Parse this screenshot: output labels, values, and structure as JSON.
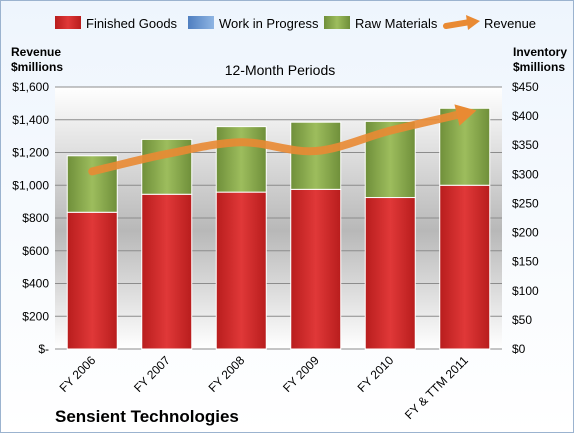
{
  "chart_data": {
    "type": "bar",
    "title": "12-Month Periods",
    "company": "Sensient Technologies",
    "categories": [
      "FY 2006",
      "FY 2007",
      "FY 2008",
      "FY 2009",
      "FY 2010",
      "FY & TTM 2011"
    ],
    "left_axis": {
      "title_line1": "Revenue",
      "title_line2": "$millions",
      "ylim": [
        0,
        1600
      ],
      "ticks": [
        0,
        200,
        400,
        600,
        800,
        1000,
        1200,
        1400,
        1600
      ],
      "tick_labels": [
        "$-",
        "$200",
        "$400",
        "$600",
        "$800",
        "$1,000",
        "$1,200",
        "$1,400",
        "$1,600"
      ]
    },
    "right_axis": {
      "title_line1": "Inventory",
      "title_line2": "$millions",
      "ylim": [
        0,
        450
      ],
      "ticks": [
        0,
        50,
        100,
        150,
        200,
        250,
        300,
        350,
        400,
        450
      ],
      "tick_labels": [
        "$0",
        "$50",
        "$100",
        "$150",
        "$200",
        "$250",
        "$300",
        "$350",
        "$400",
        "$450"
      ]
    },
    "series": [
      {
        "name": "Finished Goods",
        "kind": "stacked-bar",
        "axis": "left",
        "color": "#d42a2a",
        "values": [
          835,
          945,
          958,
          975,
          925,
          1000
        ]
      },
      {
        "name": "Work in Progress",
        "kind": "stacked-bar",
        "axis": "left",
        "color": "#6f9fd8",
        "values": [
          0,
          0,
          0,
          0,
          0,
          0
        ]
      },
      {
        "name": "Raw Materials",
        "kind": "stacked-bar",
        "axis": "left",
        "color": "#8faf4f",
        "values": [
          345,
          335,
          400,
          410,
          465,
          470
        ]
      },
      {
        "name": "Revenue",
        "kind": "line",
        "axis": "right",
        "color": "#e98a33",
        "values": [
          305,
          335,
          355,
          340,
          375,
          405
        ]
      }
    ],
    "grid": true,
    "legend_position": "top"
  }
}
